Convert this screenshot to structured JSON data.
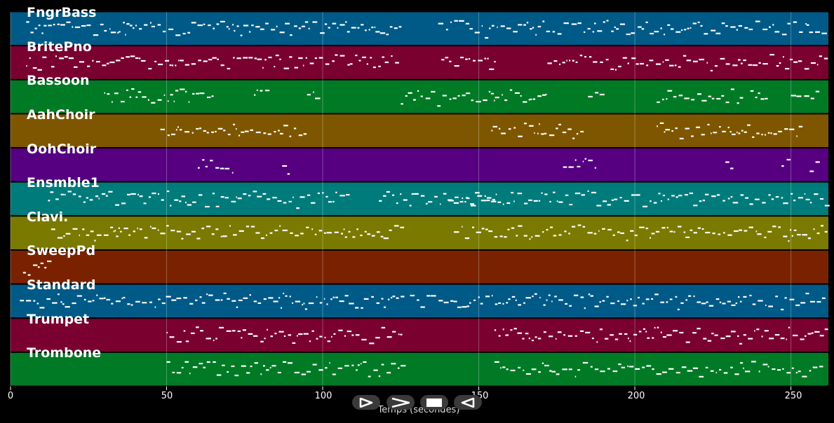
{
  "axis": {
    "xlabel": "Temps (secondes)",
    "xlim": [
      0,
      262
    ],
    "ticks": [
      "0",
      "50",
      "100",
      "150",
      "200",
      "250"
    ],
    "tick_values": [
      0,
      50,
      100,
      150,
      200,
      250
    ]
  },
  "tracks": [
    {
      "name": "FngrBass",
      "color": "#005a87"
    },
    {
      "name": "BritePno",
      "color": "#7a0030"
    },
    {
      "name": "Bassoon",
      "color": "#007a25"
    },
    {
      "name": "AahChoir",
      "color": "#7f5600"
    },
    {
      "name": "OohChoir",
      "color": "#560081"
    },
    {
      "name": "Ensmble1",
      "color": "#007b7b"
    },
    {
      "name": "Clavi.",
      "color": "#7a7a00"
    },
    {
      "name": "SweepPd",
      "color": "#7a2200"
    },
    {
      "name": "Standard",
      "color": "#005a87"
    },
    {
      "name": "Trumpet",
      "color": "#7a0030"
    },
    {
      "name": "Trombone",
      "color": "#007a25"
    }
  ],
  "controls": {
    "play": "play-icon",
    "fast_forward": "fast-forward-icon",
    "stop": "stop-icon",
    "rewind": "rewind-icon"
  },
  "chart_data": {
    "type": "piano-roll",
    "xlabel": "Temps (secondes)",
    "xlim": [
      0,
      262
    ],
    "grid": true,
    "series": [
      {
        "name": "FngrBass",
        "active": [
          [
            5,
            12
          ],
          [
            12,
            125
          ],
          [
            137,
            261
          ]
        ]
      },
      {
        "name": "BritePno",
        "active": [
          [
            5,
            12
          ],
          [
            13,
            125
          ],
          [
            138,
            155
          ],
          [
            172,
            261
          ]
        ]
      },
      {
        "name": "Bassoon",
        "active": [
          [
            30,
            65
          ],
          [
            78,
            83
          ],
          [
            95,
            99
          ],
          [
            125,
            172
          ],
          [
            185,
            189
          ],
          [
            207,
            234
          ],
          [
            237,
            242
          ],
          [
            250,
            258
          ]
        ]
      },
      {
        "name": "AahChoir",
        "active": [
          [
            48,
            94
          ],
          [
            154,
            184
          ],
          [
            207,
            254
          ]
        ]
      },
      {
        "name": "OohChoir",
        "active": [
          [
            60,
            72
          ],
          [
            87,
            90
          ],
          [
            177,
            188
          ],
          [
            229,
            231
          ],
          [
            247,
            249
          ],
          [
            256,
            258
          ]
        ]
      },
      {
        "name": "Ensmble1",
        "active": [
          [
            12,
            108
          ],
          [
            118,
            156
          ],
          [
            140,
            261
          ]
        ]
      },
      {
        "name": "Clavi.",
        "active": [
          [
            13,
            125
          ],
          [
            142,
            261
          ]
        ]
      },
      {
        "name": "SweepPd",
        "active": [
          [
            4,
            13
          ]
        ]
      },
      {
        "name": "Standard",
        "active": [
          [
            3,
            125
          ],
          [
            128,
            261
          ]
        ]
      },
      {
        "name": "Trumpet",
        "active": [
          [
            50,
            125
          ],
          [
            155,
            261
          ]
        ]
      },
      {
        "name": "Trombone",
        "active": [
          [
            50,
            125
          ],
          [
            155,
            261
          ]
        ]
      }
    ]
  }
}
